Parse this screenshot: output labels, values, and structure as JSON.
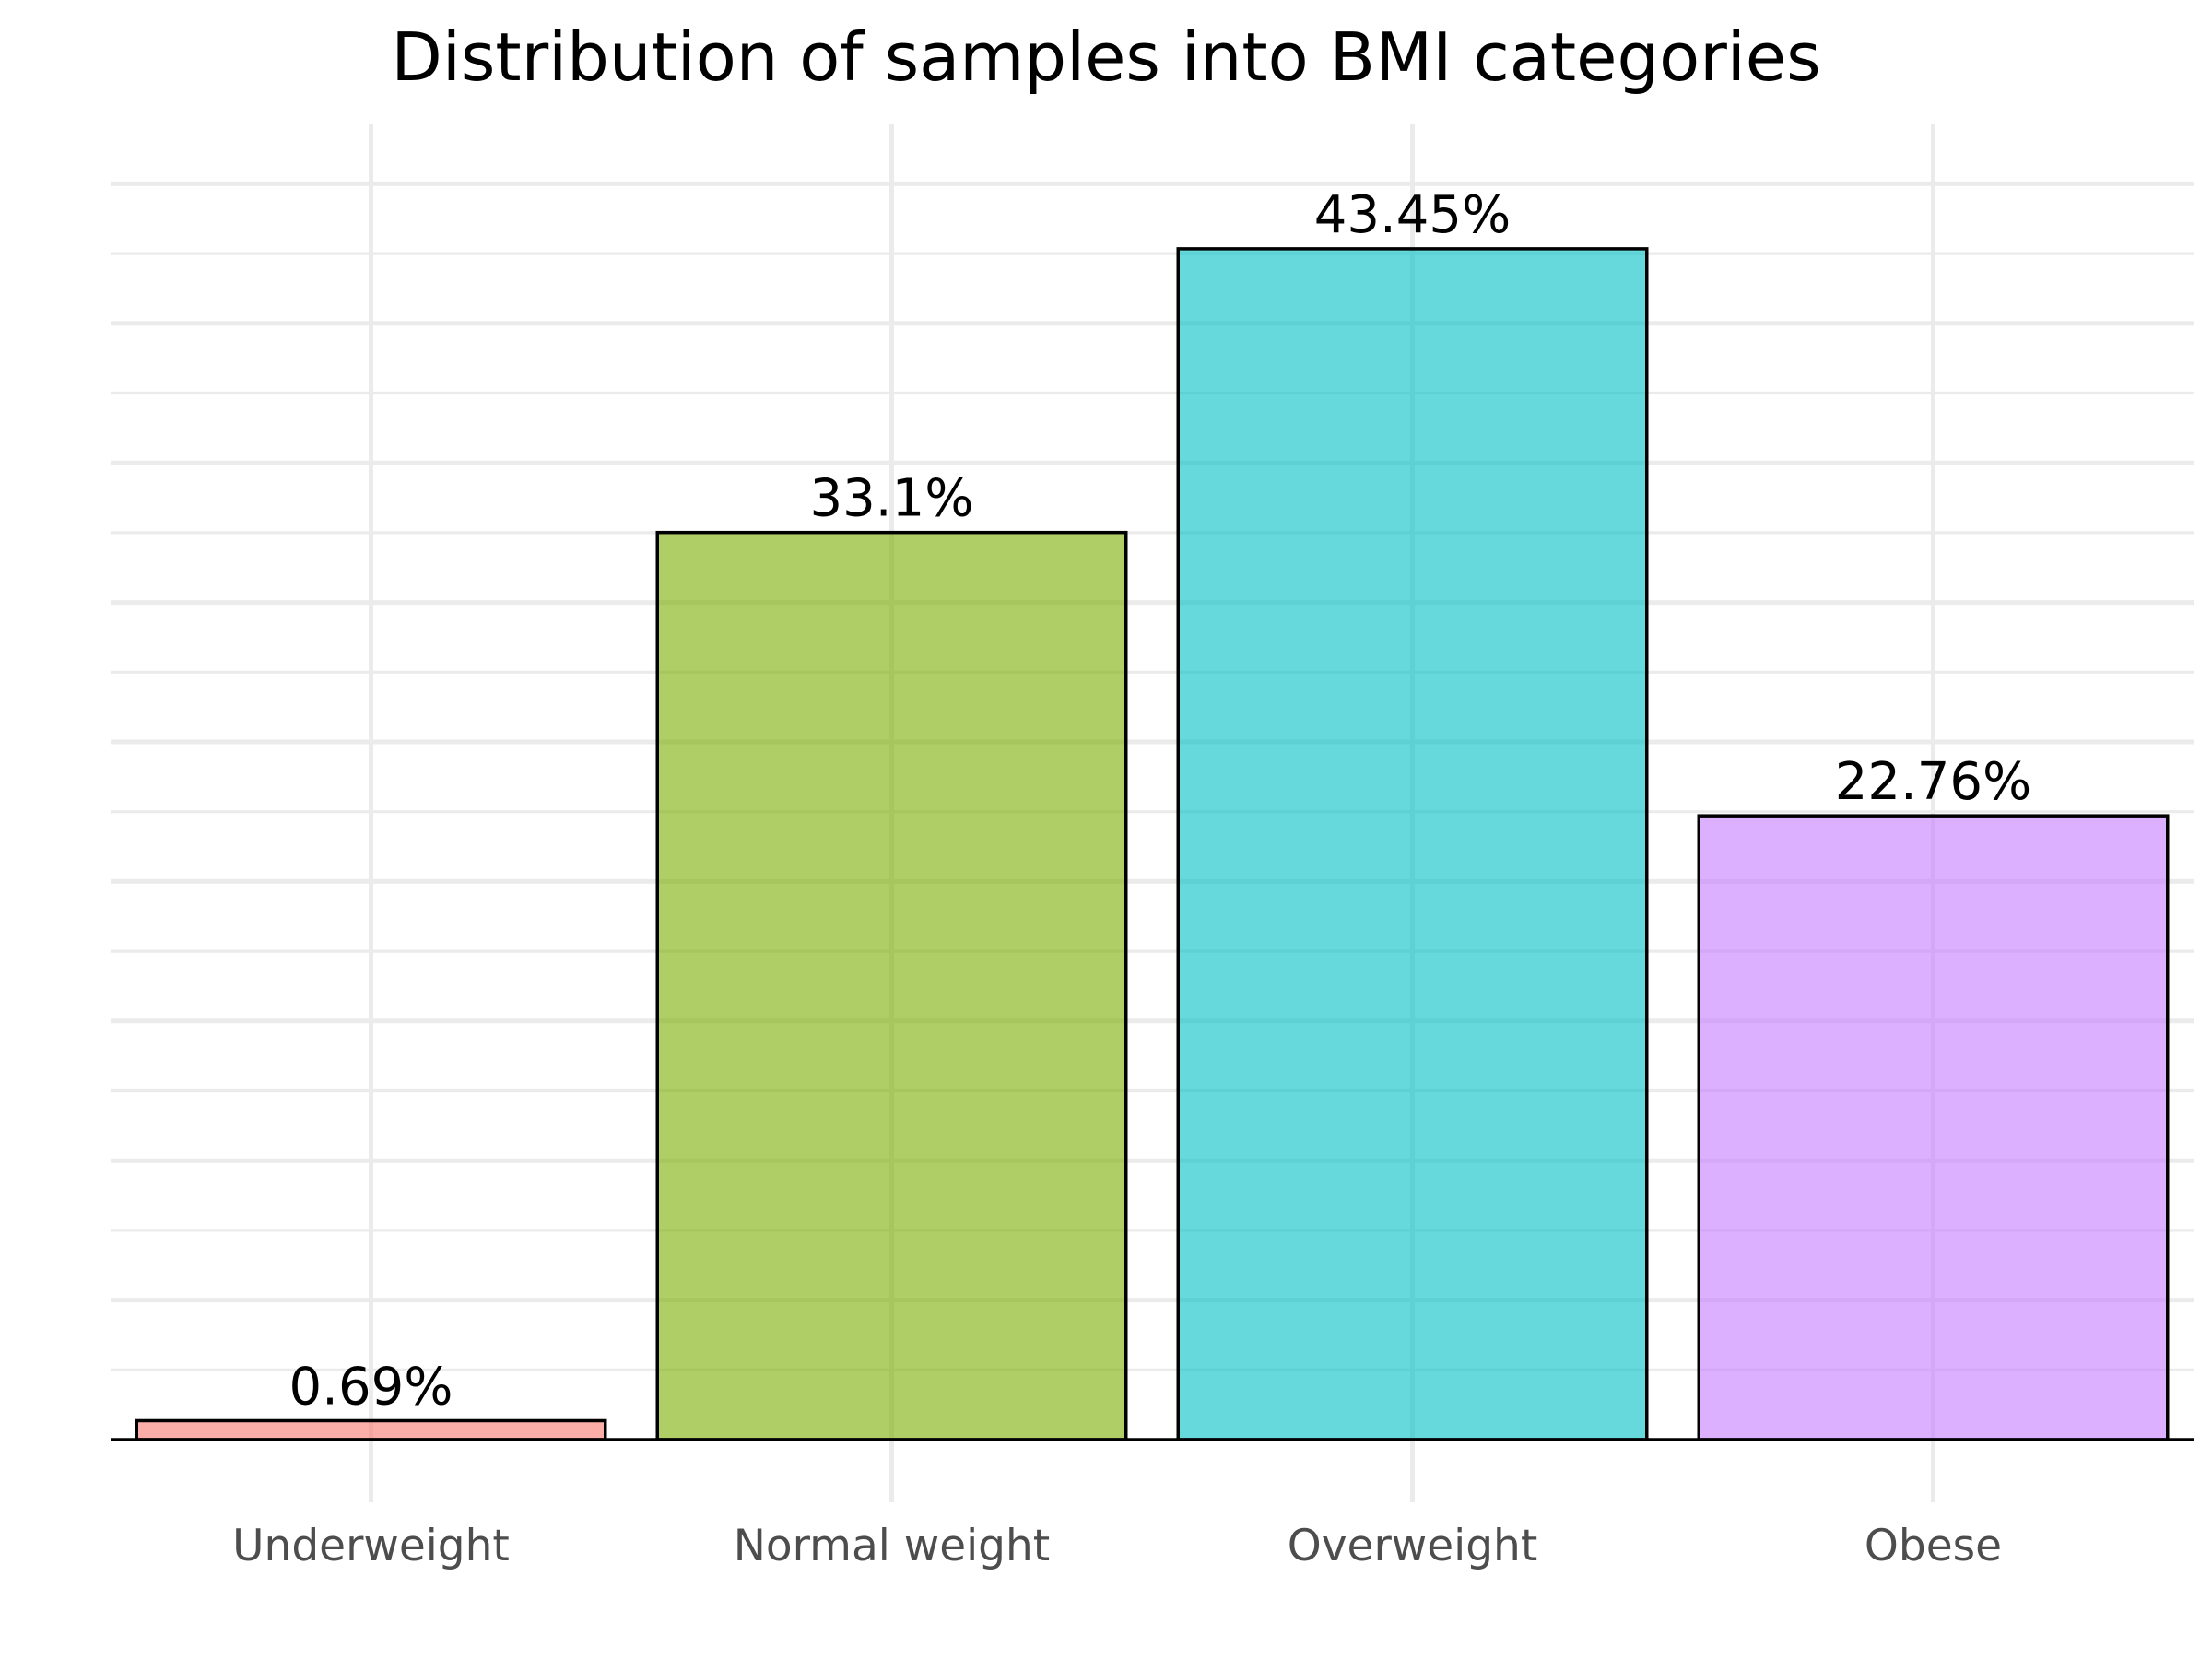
{
  "chart_data": {
    "type": "bar",
    "title": "Distribution of samples into BMI categories",
    "xlabel": "",
    "ylabel": "",
    "categories": [
      "Underweight",
      "Normal weight",
      "Overweight",
      "Obese"
    ],
    "values": [
      0.69,
      33.1,
      43.45,
      22.76
    ],
    "value_labels": [
      "0.69%",
      "33.1%",
      "43.45%",
      "22.76%"
    ],
    "colors": [
      "#F8766D",
      "#7CAE00",
      "#00BFC4",
      "#C77CFF"
    ],
    "bar_alpha": 0.6,
    "ylim": [
      0,
      45.8
    ],
    "y_tick_labels_shown": false,
    "grid": true,
    "legend": "none"
  }
}
